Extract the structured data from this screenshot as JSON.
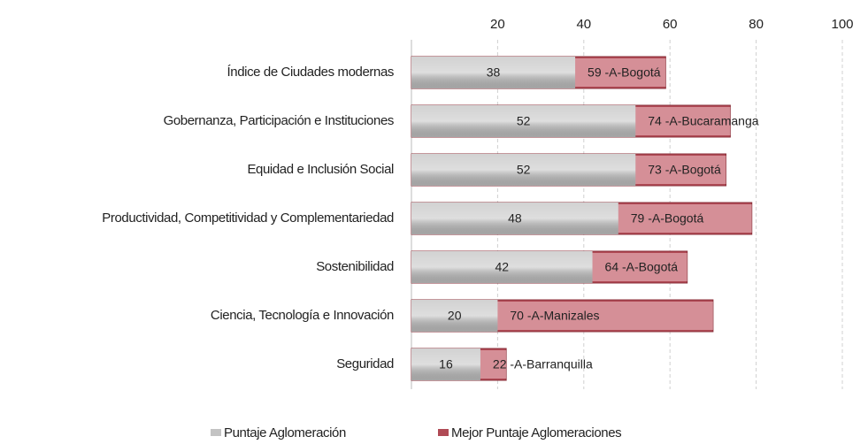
{
  "chart_data": {
    "type": "bar",
    "orientation": "horizontal",
    "categories": [
      "Índice de Ciudades modernas",
      "Gobernanza, Participación e Instituciones",
      "Equidad e Inclusión Social",
      "Productividad, Competitividad y Complementariedad",
      "Sostenibilidad",
      "Ciencia, Tecnología e Innovación",
      "Seguridad"
    ],
    "series": [
      {
        "name": "Puntaje Aglomeración",
        "color": "#c3c3c3",
        "values": [
          38,
          52,
          52,
          48,
          42,
          20,
          16
        ]
      },
      {
        "name": "Mejor Puntaje Aglomeraciones",
        "color": "#b04a55",
        "values": [
          59,
          74,
          73,
          79,
          64,
          70,
          22
        ],
        "value_labels": [
          "59 -A-Bogotá",
          "74 -A-Bucaramanga",
          "73 -A-Bogotá",
          "79 -A-Bogotá",
          "64 -A-Bogotá",
          "70 -A-Manizales",
          "22 -A-Barranquilla"
        ]
      }
    ],
    "xlim": [
      0,
      100
    ],
    "xticks": [
      20,
      40,
      60,
      80,
      100
    ],
    "grid": true,
    "legend": "bottom"
  }
}
